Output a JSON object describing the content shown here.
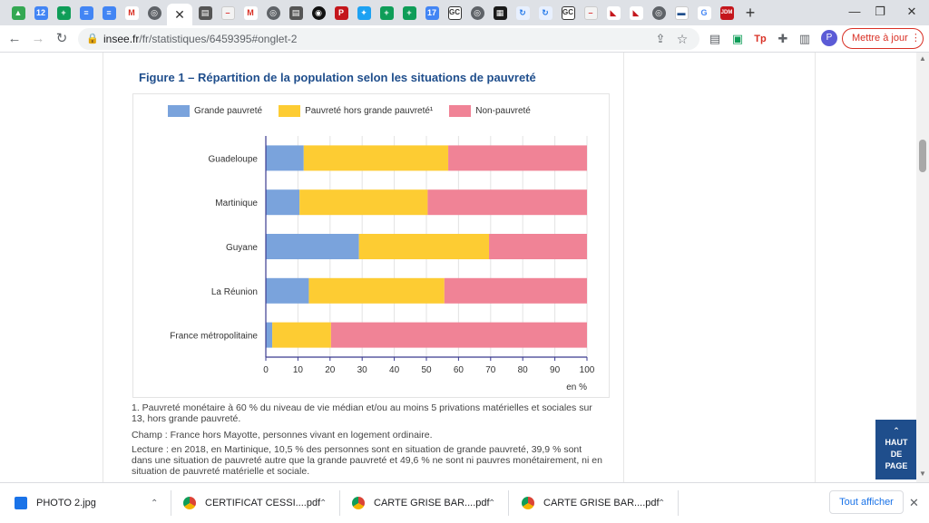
{
  "browser": {
    "url_host": "insee.fr",
    "url_path": "/fr/statistiques/6459395#onglet-2",
    "update_button": "Mettre à jour",
    "profile_initial": "P",
    "new_tab": "+",
    "tab_labels": [
      "12",
      "GC",
      "GC",
      "P",
      "17",
      "JDM",
      "G"
    ]
  },
  "figure": {
    "title": "Figure 1 – Répartition de la population selon les situations de pauvreté",
    "notes": [
      "1. Pauvreté monétaire à 60 % du niveau de vie médian et/ou au moins 5 privations matérielles et sociales sur 13, hors grande pauvreté.",
      "Champ : France hors Mayotte, personnes vivant en logement ordinaire.",
      "Lecture : en 2018, en Martinique, 10,5 % des personnes sont en situation de grande pauvreté, 39,9 % sont dans une situation de pauvreté autre que la grande pauvreté et 49,6 % ne sont ni pauvres monétairement, ni en situation de pauvreté matérielle et sociale."
    ],
    "back_to_top": [
      "HAUT",
      "DE",
      "PAGE"
    ]
  },
  "chart_data": {
    "type": "bar",
    "orientation": "horizontal",
    "stacked": true,
    "categories": [
      "Guadeloupe",
      "Martinique",
      "Guyane",
      "La Réunion",
      "France métropolitaine"
    ],
    "series": [
      {
        "name": "Grande pauvreté",
        "color": "#7aa3dc",
        "values": [
          11.8,
          10.5,
          29.0,
          13.4,
          2.0
        ]
      },
      {
        "name": "Pauvreté hors grande pauvreté¹",
        "color": "#fdcc33",
        "values": [
          45.0,
          39.9,
          40.5,
          42.2,
          18.3
        ]
      },
      {
        "name": "Non-pauvreté",
        "color": "#f08396",
        "values": [
          43.2,
          49.6,
          30.5,
          44.4,
          79.7
        ]
      }
    ],
    "xlim": [
      0,
      100
    ],
    "xticks": [
      0,
      10,
      20,
      30,
      40,
      50,
      60,
      70,
      80,
      90,
      100
    ],
    "xunit": "en %",
    "grid": true,
    "legend_position": "top"
  },
  "downloads": {
    "items": [
      "PHOTO 2.jpg",
      "CERTIFICAT CESSI....pdf",
      "CARTE GRISE BAR....pdf",
      "CARTE GRISE BAR....pdf"
    ],
    "show_all": "Tout afficher"
  }
}
